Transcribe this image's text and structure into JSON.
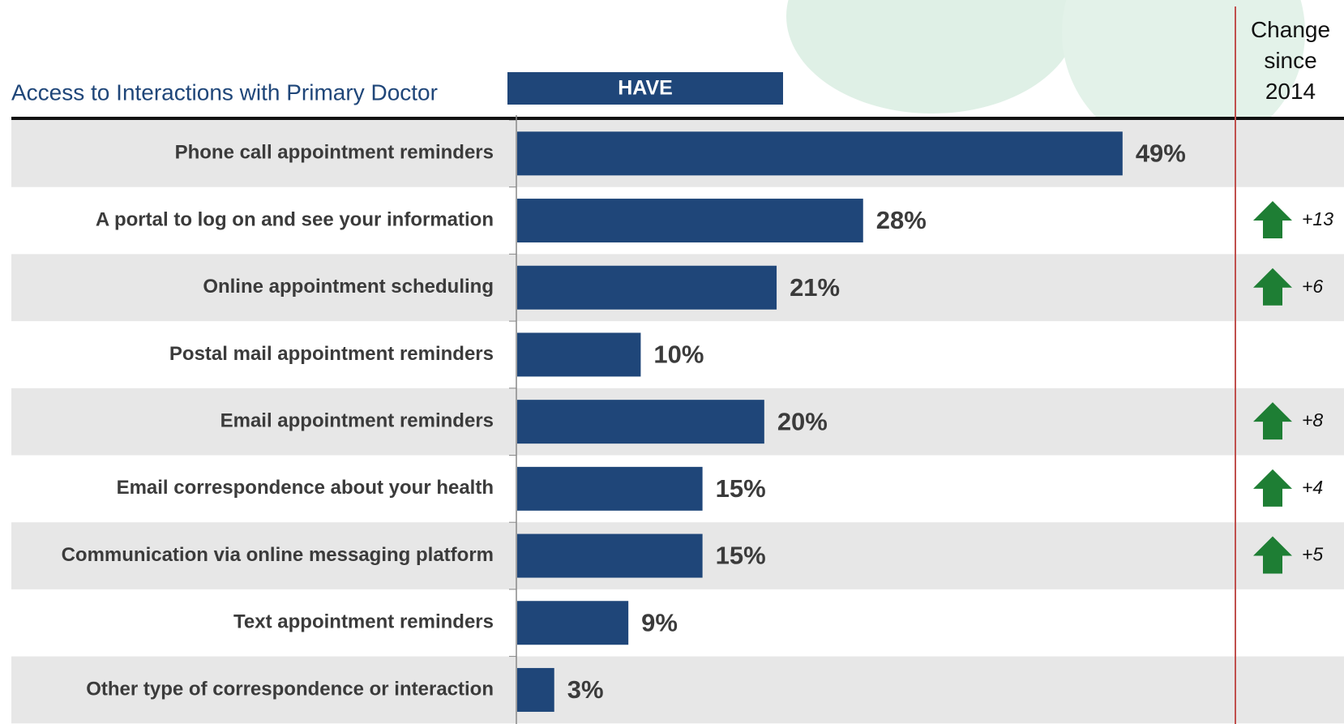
{
  "chart_data": {
    "type": "bar",
    "title": "Access to Interactions with Primary Doctor",
    "header": "HAVE",
    "categories": [
      "Phone call appointment reminders",
      "A portal to log on and see your information",
      "Online appointment scheduling",
      "Postal mail appointment reminders",
      "Email appointment reminders",
      "Email correspondence about your health",
      "Communication via  online  messaging platform",
      "Text appointment reminders",
      "Other type of correspondence or interaction"
    ],
    "values": [
      49,
      28,
      21,
      10,
      20,
      15,
      15,
      9,
      3
    ],
    "value_labels": [
      "49%",
      "28%",
      "21%",
      "10%",
      "20%",
      "15%",
      "15%",
      "9%",
      "3%"
    ],
    "color": "#1f4679",
    "xlim": [
      0,
      58
    ],
    "change": {
      "name": "Change since 2014",
      "color": "#1e7e34",
      "values": [
        null,
        13,
        6,
        null,
        8,
        4,
        5,
        null,
        null
      ],
      "value_labels": [
        null,
        "+13",
        "+6",
        null,
        "+8",
        "+4",
        "+5",
        null,
        null
      ]
    }
  }
}
